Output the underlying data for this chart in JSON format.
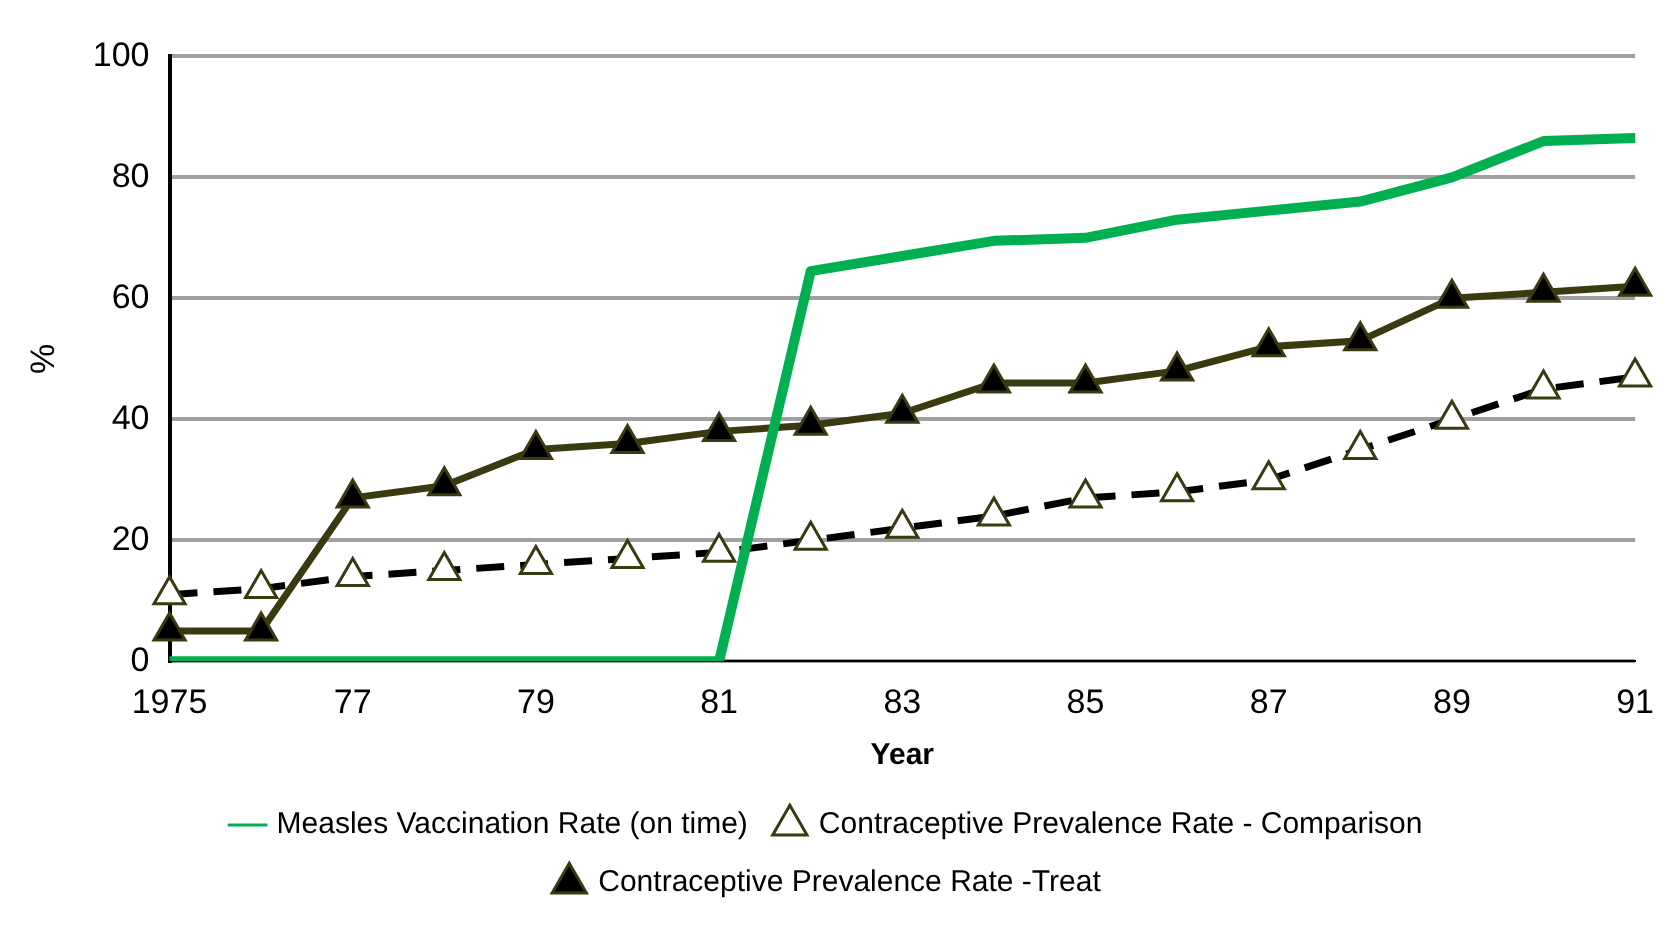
{
  "chart_data": {
    "type": "line",
    "xlabel": "Year",
    "ylabel": "%",
    "categories": [
      "1975",
      null,
      "77",
      null,
      "79",
      null,
      "81",
      null,
      "83",
      null,
      "85",
      null,
      "87",
      null,
      "89",
      null,
      "91"
    ],
    "series": [
      {
        "name": "Measles Vaccination Rate (on time)",
        "color": "#00b050",
        "marker": "none",
        "line_style": "solid",
        "values": [
          0,
          0,
          0,
          0,
          0,
          0,
          0,
          64.5,
          67,
          69.5,
          70,
          73,
          74.5,
          76,
          80,
          86,
          86.5
        ]
      },
      {
        "name": "Contraceptive Prevalence Rate - Comparison",
        "color": "#000000",
        "marker": "triangle",
        "line_style": "dashed",
        "values": [
          11,
          12,
          14,
          15,
          16,
          17,
          18,
          20,
          22,
          24,
          27,
          28,
          30,
          35,
          40,
          45,
          47
        ]
      },
      {
        "name": "Contraceptive Prevalence Rate -Treat",
        "color": "#3a3a10",
        "marker": "triangle",
        "line_style": "solid",
        "values": [
          5,
          5,
          27,
          29,
          35,
          36,
          38,
          39,
          41,
          46,
          46,
          48,
          52,
          53,
          60,
          61,
          62
        ]
      }
    ],
    "ylim": [
      0,
      100
    ],
    "yticks": [
      0,
      20,
      40,
      60,
      80,
      100
    ],
    "grid": "y",
    "legend": "bottom"
  }
}
